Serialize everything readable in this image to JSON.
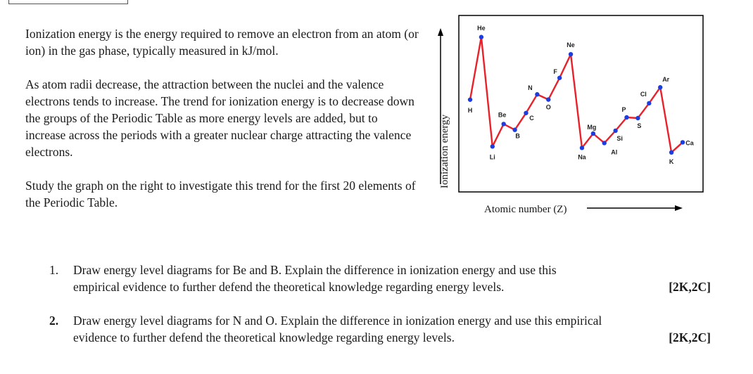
{
  "intro": {
    "p1": "Ionization energy is the energy required to remove an electron from an atom (or ion) in the gas phase, typically measured in kJ/mol.",
    "p2": "As atom radii decrease, the attraction between the nuclei and the valence electrons tends to increase. The trend for ionization energy is to decrease down the groups of the Periodic Table as more energy levels are added, but to increase across the periods with a greater nuclear charge attracting the valence electrons.",
    "p3": "Study the graph on the right to investigate this trend for the first 20 elements of the Periodic Table."
  },
  "chart_data": {
    "type": "line",
    "ylabel": "Ionization energy",
    "xlabel": "Atomic number (Z)",
    "x": [
      1,
      2,
      3,
      4,
      5,
      6,
      7,
      8,
      9,
      10,
      11,
      12,
      13,
      14,
      15,
      16,
      17,
      18,
      19,
      20
    ],
    "categories": [
      "H",
      "He",
      "Li",
      "Be",
      "B",
      "C",
      "N",
      "O",
      "F",
      "Ne",
      "Na",
      "Mg",
      "Al",
      "Si",
      "P",
      "S",
      "Cl",
      "Ar",
      "K",
      "Ca"
    ],
    "values": [
      1312,
      2372,
      520,
      900,
      801,
      1086,
      1402,
      1314,
      1681,
      2081,
      496,
      738,
      578,
      787,
      1012,
      1000,
      1251,
      1521,
      419,
      590
    ],
    "ylim": [
      0,
      2500
    ],
    "grid": false,
    "colors": {
      "line": "#e8212a",
      "point": "#1c3ee0"
    }
  },
  "questions": [
    {
      "num": "1.",
      "line1": "Draw energy level diagrams for Be and B. Explain the difference in ionization energy and use this",
      "line2": "empirical evidence to further defend the theoretical knowledge regarding energy levels.",
      "marks": "[2K,2C]",
      "bold_num": false
    },
    {
      "num": "2.",
      "line1": "Draw energy level diagrams for N and O. Explain the difference in ionization energy and use this empirical",
      "line2": "evidence to further defend the theoretical knowledge regarding energy levels.",
      "marks": "[2K,2C]",
      "bold_num": true
    }
  ]
}
